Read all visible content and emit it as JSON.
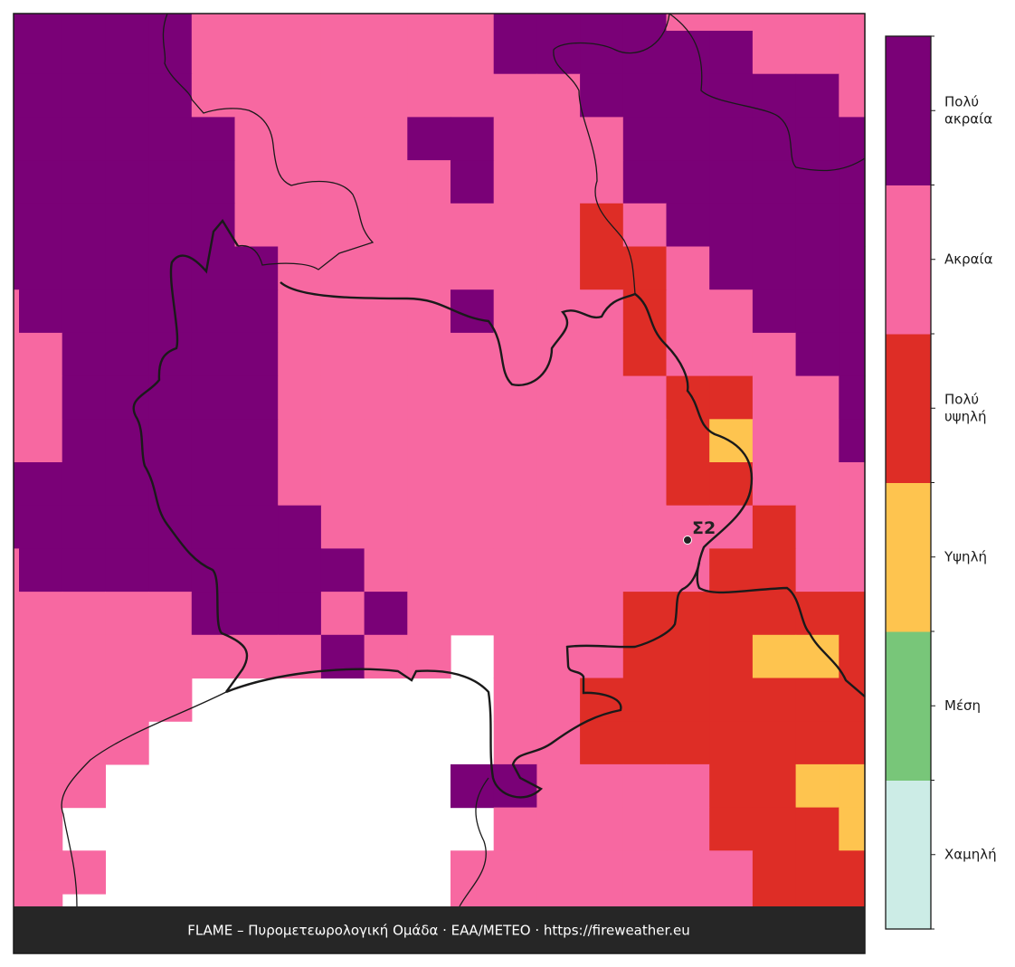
{
  "map": {
    "grid": {
      "rows": [
        [
          5,
          5,
          5,
          5,
          5,
          4,
          4,
          4,
          4,
          4,
          4,
          4,
          5,
          5,
          5,
          5,
          4,
          4,
          4,
          4,
          4
        ],
        [
          5,
          5,
          5,
          5,
          5,
          4,
          4,
          4,
          4,
          4,
          4,
          4,
          5,
          5,
          5,
          5,
          5,
          5,
          4,
          4,
          4
        ],
        [
          5,
          5,
          5,
          5,
          5,
          4,
          4,
          4,
          4,
          4,
          4,
          4,
          4,
          4,
          5,
          5,
          5,
          5,
          5,
          5,
          4
        ],
        [
          5,
          5,
          5,
          5,
          5,
          5,
          4,
          4,
          4,
          4,
          5,
          5,
          4,
          4,
          4,
          5,
          5,
          5,
          5,
          5,
          5
        ],
        [
          5,
          5,
          5,
          5,
          5,
          5,
          4,
          4,
          4,
          4,
          4,
          5,
          4,
          4,
          4,
          5,
          5,
          5,
          5,
          5,
          5
        ],
        [
          5,
          5,
          5,
          5,
          5,
          5,
          4,
          4,
          4,
          4,
          4,
          4,
          4,
          4,
          3,
          4,
          5,
          5,
          5,
          5,
          5
        ],
        [
          5,
          5,
          5,
          5,
          5,
          5,
          5,
          4,
          4,
          4,
          4,
          4,
          4,
          4,
          3,
          3,
          4,
          5,
          5,
          5,
          5
        ],
        [
          4,
          5,
          5,
          5,
          5,
          5,
          5,
          4,
          4,
          4,
          4,
          5,
          4,
          4,
          4,
          3,
          4,
          4,
          5,
          5,
          5
        ],
        [
          4,
          4,
          5,
          5,
          5,
          5,
          5,
          4,
          4,
          4,
          4,
          4,
          4,
          4,
          4,
          3,
          4,
          4,
          4,
          5,
          5
        ],
        [
          4,
          4,
          5,
          5,
          5,
          5,
          5,
          4,
          4,
          4,
          4,
          4,
          4,
          4,
          4,
          4,
          3,
          3,
          4,
          4,
          5
        ],
        [
          4,
          4,
          5,
          5,
          5,
          5,
          5,
          4,
          4,
          4,
          4,
          4,
          4,
          4,
          4,
          4,
          3,
          2,
          4,
          4,
          5
        ],
        [
          5,
          5,
          5,
          5,
          5,
          5,
          5,
          4,
          4,
          4,
          4,
          4,
          4,
          4,
          4,
          4,
          3,
          3,
          4,
          4,
          4
        ],
        [
          5,
          5,
          5,
          5,
          5,
          5,
          5,
          5,
          4,
          4,
          4,
          4,
          4,
          4,
          4,
          4,
          4,
          4,
          3,
          4,
          4
        ],
        [
          4,
          5,
          5,
          5,
          5,
          5,
          5,
          5,
          5,
          4,
          4,
          4,
          4,
          4,
          4,
          4,
          4,
          3,
          3,
          4,
          4
        ],
        [
          4,
          4,
          4,
          4,
          4,
          5,
          5,
          5,
          4,
          5,
          4,
          4,
          4,
          4,
          4,
          3,
          3,
          3,
          3,
          3,
          3
        ],
        [
          4,
          4,
          4,
          4,
          4,
          4,
          4,
          4,
          5,
          4,
          4,
          null,
          4,
          4,
          4,
          3,
          3,
          3,
          2,
          2,
          3
        ],
        [
          4,
          4,
          4,
          4,
          4,
          null,
          null,
          null,
          null,
          null,
          null,
          null,
          4,
          4,
          3,
          3,
          3,
          3,
          3,
          3,
          3
        ],
        [
          4,
          4,
          4,
          4,
          null,
          null,
          null,
          null,
          null,
          null,
          null,
          null,
          4,
          4,
          3,
          3,
          3,
          3,
          3,
          3,
          3
        ],
        [
          4,
          4,
          4,
          null,
          null,
          null,
          null,
          null,
          null,
          null,
          null,
          5,
          5,
          4,
          4,
          4,
          4,
          3,
          3,
          2,
          2
        ],
        [
          4,
          4,
          null,
          null,
          null,
          null,
          null,
          null,
          null,
          null,
          null,
          null,
          4,
          4,
          4,
          4,
          4,
          3,
          3,
          3,
          2
        ],
        [
          4,
          4,
          4,
          null,
          null,
          null,
          null,
          null,
          null,
          null,
          null,
          4,
          4,
          4,
          4,
          4,
          4,
          4,
          3,
          3,
          3
        ],
        [
          4,
          4,
          null,
          null,
          null,
          null,
          null,
          null,
          null,
          null,
          null,
          4,
          4,
          4,
          4,
          4,
          4,
          4,
          3,
          3,
          3
        ]
      ]
    },
    "station": {
      "label": "Σ2"
    },
    "footer": "FLAME – Πυρομετεωρολογική Ομάδα · ΕΑΑ/METEO · https://fireweather.eu"
  },
  "legend": {
    "categories": [
      {
        "label": [
          "Χαμηλή"
        ],
        "color": "#ccece6"
      },
      {
        "label": [
          "Μέση"
        ],
        "color": "#78c679"
      },
      {
        "label": [
          "Υψηλή"
        ],
        "color": "#fec44f"
      },
      {
        "label": [
          "Πολύ",
          "υψηλή"
        ],
        "color": "#de2d26"
      },
      {
        "label": [
          "Ακραία"
        ],
        "color": "#f768a1"
      },
      {
        "label": [
          "Πολύ",
          "ακραία"
        ],
        "color": "#7a0177"
      }
    ]
  }
}
